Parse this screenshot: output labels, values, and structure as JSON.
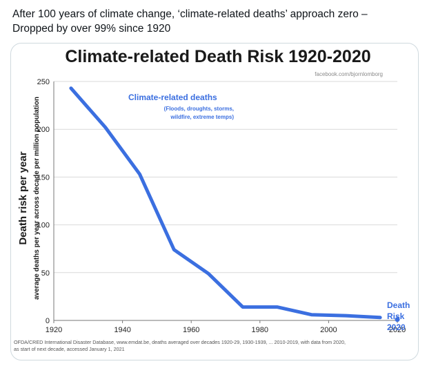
{
  "tweet": {
    "line1": "After 100 years of climate change, ‘climate-related deaths’ approach zero –",
    "line2": "Dropped by over 99% since 1920"
  },
  "colors": {
    "series": "#3b6fe0",
    "grid": "#d9d9d9",
    "axis": "#777777"
  },
  "chart_data": {
    "type": "line",
    "title": "Climate-related Death Risk 1920-2020",
    "credit": "facebook.com/bjornlomborg",
    "ylabel": "Death risk per year",
    "ylabel_sub": "average deaths per year across decade per million population",
    "xlabel": "",
    "xlim": [
      1920,
      2020
    ],
    "ylim": [
      0,
      250
    ],
    "x_ticks": [
      1920,
      1940,
      1960,
      1980,
      2000,
      2020
    ],
    "y_ticks": [
      0,
      50,
      100,
      150,
      200,
      250
    ],
    "grid": true,
    "series": [
      {
        "name": "Climate-related deaths",
        "x": [
          1925,
          1935,
          1945,
          1955,
          1965,
          1975,
          1985,
          1995,
          2005,
          2015
        ],
        "values": [
          243,
          202,
          153,
          74,
          49,
          14,
          14,
          6,
          5,
          3
        ]
      }
    ],
    "annotation_series_title": "Climate-related deaths",
    "annotation_series_sub1": "(Floods, droughts, storms,",
    "annotation_series_sub2": "wildfire, extreme temps)",
    "end_point": {
      "x": 2020,
      "y": 1
    },
    "end_label_1": "Death",
    "end_label_2": "Risk",
    "end_label_3": "2020",
    "source_line1": "OFDA/CRED International Disaster Database, www.emdat.be, deaths averaged over decades 1920-29, 1930-1939, ... 2010-2019, with data from 2020,",
    "source_line2": "as start of next decade, accessed January 1, 2021"
  }
}
